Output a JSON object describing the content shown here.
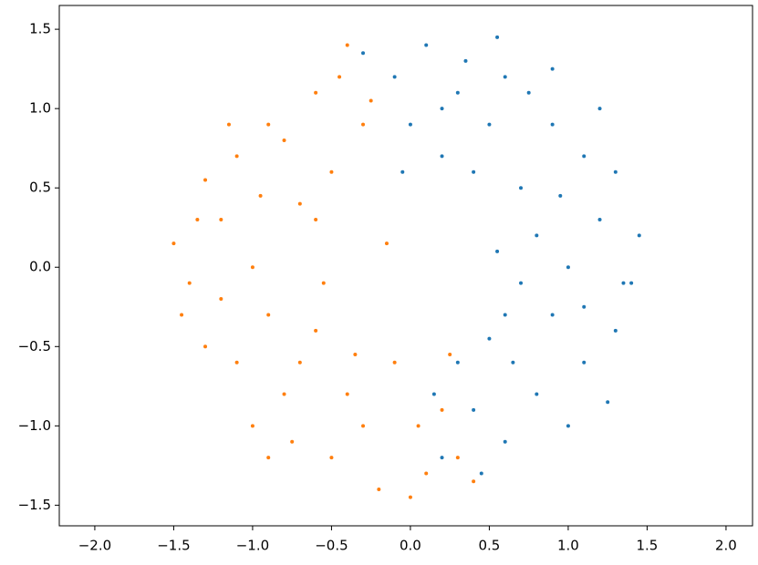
{
  "chart_data": {
    "type": "scatter",
    "xlim": [
      -2.225,
      2.168
    ],
    "ylim": [
      -1.63,
      1.65
    ],
    "xticks": [
      {
        "value": -2,
        "label": "−2.0"
      },
      {
        "value": -1.5,
        "label": "−1.5"
      },
      {
        "value": -1,
        "label": "−1.0"
      },
      {
        "value": -0.5,
        "label": "−0.5"
      },
      {
        "value": 0,
        "label": "0.0"
      },
      {
        "value": 0.5,
        "label": "0.5"
      },
      {
        "value": 1,
        "label": "1.0"
      },
      {
        "value": 1.5,
        "label": "1.5"
      },
      {
        "value": 2,
        "label": "2.0"
      }
    ],
    "yticks": [
      {
        "value": -1.5,
        "label": "−1.5"
      },
      {
        "value": -1,
        "label": "−1.0"
      },
      {
        "value": -0.5,
        "label": "−0.5"
      },
      {
        "value": 0,
        "label": "0.0"
      },
      {
        "value": 0.5,
        "label": "0.5"
      },
      {
        "value": 1,
        "label": "1.0"
      },
      {
        "value": 1.5,
        "label": "1.5"
      }
    ],
    "series": [
      {
        "color": "#1f77b4",
        "x": [
          1.2,
          1.4,
          0.9,
          0.6,
          0.1,
          0.3,
          0.7,
          0.55,
          0.6,
          0.8,
          1.1,
          1.3,
          0.4,
          0.6,
          0.45,
          1.0,
          1.1,
          1.3,
          0.2,
          0.4,
          0.0,
          -0.1,
          -0.3,
          0.9,
          1.45,
          0.75,
          0.5,
          0.8,
          0.65,
          0.3,
          1.0,
          0.9,
          0.2,
          0.5,
          1.25,
          0.35,
          1.2,
          0.7,
          1.35,
          0.95,
          0.2,
          0.15,
          -0.05,
          0.55,
          1.1
        ],
        "y": [
          0.3,
          -0.1,
          0.9,
          1.2,
          1.4,
          1.1,
          0.5,
          0.1,
          -0.3,
          -0.8,
          -0.6,
          -0.4,
          -0.9,
          -1.1,
          -1.3,
          0.0,
          0.7,
          0.6,
          0.7,
          0.6,
          0.9,
          1.2,
          1.35,
          -0.3,
          0.2,
          1.1,
          0.9,
          0.2,
          -0.6,
          -0.6,
          -1.0,
          1.25,
          1.0,
          -0.45,
          -0.85,
          1.3,
          1.0,
          -0.1,
          -0.1,
          0.45,
          -1.2,
          -0.8,
          0.6,
          1.45,
          -0.25
        ]
      },
      {
        "color": "#ff7f0e",
        "x": [
          -1.2,
          -1.4,
          -0.9,
          -0.6,
          -0.4,
          -0.3,
          -0.7,
          -0.55,
          -0.6,
          -0.8,
          -1.1,
          -1.3,
          -0.4,
          -0.5,
          -0.2,
          0.1,
          0.3,
          0.2,
          -1.0,
          -1.1,
          -1.3,
          -0.5,
          -0.9,
          -1.5,
          -0.75,
          -0.1,
          0.05,
          -1.0,
          -0.35,
          -0.8,
          -1.2,
          -0.6,
          -1.45,
          -0.9,
          0.4,
          -0.25,
          -1.15,
          -0.7,
          0.0,
          -0.3,
          -0.15,
          -1.35,
          -0.45,
          -0.95,
          0.25
        ],
        "y": [
          0.3,
          -0.1,
          0.9,
          1.1,
          1.4,
          0.9,
          0.4,
          -0.1,
          -0.4,
          -0.8,
          -0.6,
          -0.5,
          -0.8,
          -1.2,
          -1.4,
          -1.3,
          -1.2,
          -0.9,
          0.0,
          0.7,
          0.55,
          0.6,
          -0.3,
          0.15,
          -1.1,
          -0.6,
          -1.0,
          -1.0,
          -0.55,
          0.8,
          -0.2,
          0.3,
          -0.3,
          -1.2,
          -1.35,
          1.05,
          0.9,
          -0.6,
          -1.45,
          -1.0,
          0.15,
          0.3,
          1.2,
          0.45,
          -0.55
        ]
      }
    ]
  }
}
